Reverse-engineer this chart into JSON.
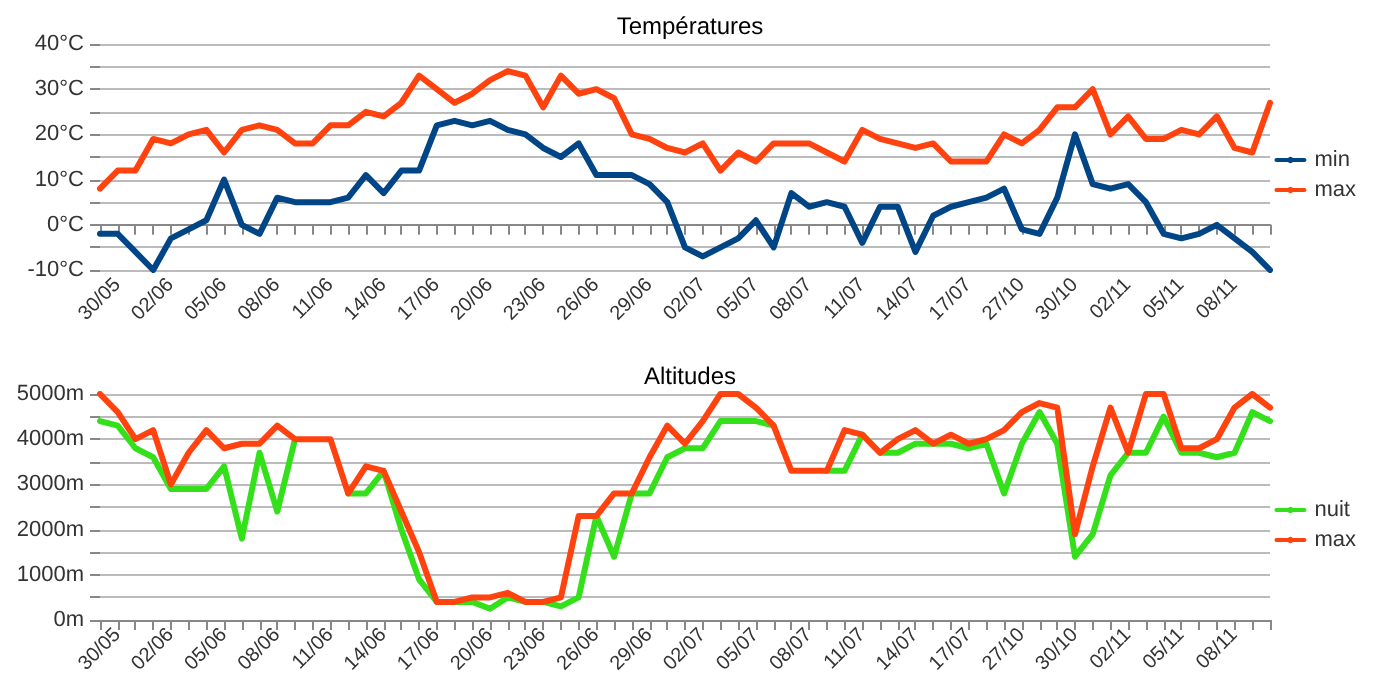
{
  "chart_data": [
    {
      "type": "line",
      "title": "Températures",
      "categories": [
        null,
        "30/05",
        null,
        null,
        "02/06",
        null,
        null,
        "05/06",
        null,
        null,
        "08/06",
        null,
        null,
        "11/06",
        null,
        null,
        "14/06",
        null,
        null,
        "17/06",
        null,
        null,
        "20/06",
        null,
        null,
        "23/06",
        null,
        null,
        "26/06",
        null,
        null,
        "29/06",
        null,
        null,
        "02/07",
        null,
        null,
        "05/07",
        null,
        null,
        "08/07",
        null,
        null,
        "11/07",
        null,
        null,
        "14/07",
        null,
        null,
        "17/07",
        null,
        null,
        "27/10",
        null,
        null,
        "30/10",
        null,
        null,
        "02/11",
        null,
        null,
        "05/11",
        null,
        null,
        "08/11",
        null,
        null
      ],
      "series": [
        {
          "name": "min",
          "color": "#004586",
          "values": [
            -2,
            -2,
            -6,
            -10,
            -3,
            -1,
            1,
            10,
            0,
            -2,
            6,
            5,
            5,
            5,
            6,
            11,
            7,
            12,
            12,
            22,
            23,
            22,
            23,
            21,
            20,
            17,
            15,
            18,
            11,
            11,
            11,
            9,
            5,
            -5,
            -7,
            -5,
            -3,
            1,
            -5,
            7,
            4,
            5,
            4,
            -4,
            4,
            4,
            -6,
            2,
            4,
            5,
            6,
            8,
            -1,
            -2,
            6,
            20,
            9,
            8,
            9,
            5,
            -2,
            -3,
            -2,
            0,
            -3,
            -6,
            -10
          ]
        },
        {
          "name": "max",
          "color": "#ff420e",
          "values": [
            8,
            12,
            12,
            19,
            18,
            20,
            21,
            16,
            21,
            22,
            21,
            18,
            18,
            22,
            22,
            25,
            24,
            27,
            33,
            30,
            27,
            29,
            32,
            34,
            33,
            26,
            33,
            29,
            30,
            28,
            20,
            19,
            17,
            16,
            18,
            12,
            16,
            14,
            18,
            18,
            18,
            16,
            14,
            21,
            19,
            18,
            17,
            18,
            14,
            14,
            14,
            20,
            18,
            21,
            26,
            26,
            30,
            20,
            24,
            19,
            19,
            21,
            20,
            24,
            17,
            16,
            27
          ]
        }
      ],
      "ylim": [
        -10,
        40
      ],
      "yticks": [
        {
          "value": -10,
          "label": "-10°C"
        },
        {
          "value": -5,
          "label": null
        },
        {
          "value": 0,
          "label": "0°C"
        },
        {
          "value": 5,
          "label": null
        },
        {
          "value": 10,
          "label": "10°C"
        },
        {
          "value": 15,
          "label": null
        },
        {
          "value": 20,
          "label": "20°C"
        },
        {
          "value": 25,
          "label": null
        },
        {
          "value": 30,
          "label": "30°C"
        },
        {
          "value": 35,
          "label": null
        },
        {
          "value": 40,
          "label": "40°C"
        }
      ],
      "grid": "y",
      "legend": "right",
      "marker": "none",
      "line_style": "solid"
    },
    {
      "type": "line",
      "title": "Altitudes",
      "categories": [
        null,
        "30/05",
        null,
        null,
        "02/06",
        null,
        null,
        "05/06",
        null,
        null,
        "08/06",
        null,
        null,
        "11/06",
        null,
        null,
        "14/06",
        null,
        null,
        "17/06",
        null,
        null,
        "20/06",
        null,
        null,
        "23/06",
        null,
        null,
        "26/06",
        null,
        null,
        "29/06",
        null,
        null,
        "02/07",
        null,
        null,
        "05/07",
        null,
        null,
        "08/07",
        null,
        null,
        "11/07",
        null,
        null,
        "14/07",
        null,
        null,
        "17/07",
        null,
        null,
        "27/10",
        null,
        null,
        "30/10",
        null,
        null,
        "02/11",
        null,
        null,
        "05/11",
        null,
        null,
        "08/11",
        null,
        null
      ],
      "series": [
        {
          "name": "nuit",
          "color": "#33e01a",
          "values": [
            4400,
            4300,
            3800,
            3600,
            2900,
            2900,
            2900,
            3400,
            1800,
            3700,
            2400,
            4000,
            null,
            null,
            2800,
            2800,
            3300,
            2000,
            900,
            400,
            400,
            400,
            250,
            500,
            400,
            400,
            300,
            500,
            2300,
            1400,
            2800,
            2800,
            3600,
            3800,
            3800,
            4400,
            4400,
            4400,
            4300,
            null,
            null,
            3300,
            3300,
            4100,
            3700,
            3700,
            3900,
            3900,
            3900,
            3800,
            3900,
            2800,
            3900,
            4600,
            3900,
            1400,
            1900,
            3200,
            3700,
            3700,
            4500,
            3700,
            3700,
            3600,
            3700,
            4600,
            4400
          ]
        },
        {
          "name": "max",
          "color": "#ff420e",
          "values": [
            5000,
            4600,
            4000,
            4200,
            3000,
            3700,
            4200,
            3800,
            3900,
            3900,
            4300,
            4000,
            4000,
            4000,
            2800,
            3400,
            3300,
            2400,
            1500,
            400,
            400,
            500,
            500,
            600,
            400,
            400,
            500,
            2300,
            2300,
            2800,
            2800,
            3600,
            4300,
            3900,
            4400,
            5000,
            5000,
            4700,
            4300,
            3300,
            3300,
            3300,
            4200,
            4100,
            3700,
            4000,
            4200,
            3900,
            4100,
            3900,
            4000,
            4200,
            4600,
            4800,
            4700,
            1900,
            3400,
            4700,
            3700,
            5000,
            5000,
            3800,
            3800,
            4000,
            4700,
            5000,
            4700
          ]
        }
      ],
      "ylim": [
        0,
        5000
      ],
      "yticks": [
        {
          "value": 0,
          "label": "0m"
        },
        {
          "value": 500,
          "label": null
        },
        {
          "value": 1000,
          "label": "1000m"
        },
        {
          "value": 1500,
          "label": null
        },
        {
          "value": 2000,
          "label": "2000m"
        },
        {
          "value": 2500,
          "label": null
        },
        {
          "value": 3000,
          "label": "3000m"
        },
        {
          "value": 3500,
          "label": null
        },
        {
          "value": 4000,
          "label": "4000m"
        },
        {
          "value": 4500,
          "label": null
        },
        {
          "value": 5000,
          "label": "5000m"
        }
      ],
      "grid": "y",
      "legend": "right",
      "marker": "none",
      "line_style": "solid"
    }
  ]
}
